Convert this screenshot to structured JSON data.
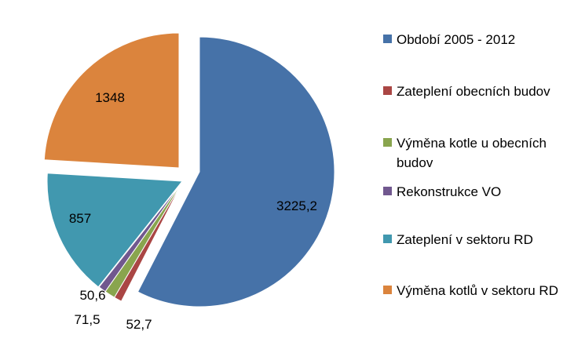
{
  "chart_data": {
    "type": "pie",
    "exploded": true,
    "legend_position": "right",
    "slices": [
      {
        "name": "Období 2005 - 2012",
        "value": 3225.2,
        "label": "3225,2",
        "color": "#4672A8"
      },
      {
        "name": "Zateplení obecních budov",
        "value": 52.7,
        "label": "52,7",
        "color": "#AA4644"
      },
      {
        "name": "Výměna kotle u obecních budov",
        "value": 71.5,
        "label": "71,5",
        "color": "#89A54E"
      },
      {
        "name": "Rekonstrukce VO",
        "value": 50.6,
        "label": "50,6",
        "color": "#71588F"
      },
      {
        "name": "Zateplení v sektoru RD",
        "value": 857,
        "label": "857",
        "color": "#4198AF"
      },
      {
        "name": "Výměna kotlů v sektoru RD",
        "value": 1348,
        "label": "1348",
        "color": "#DB843D"
      }
    ]
  }
}
